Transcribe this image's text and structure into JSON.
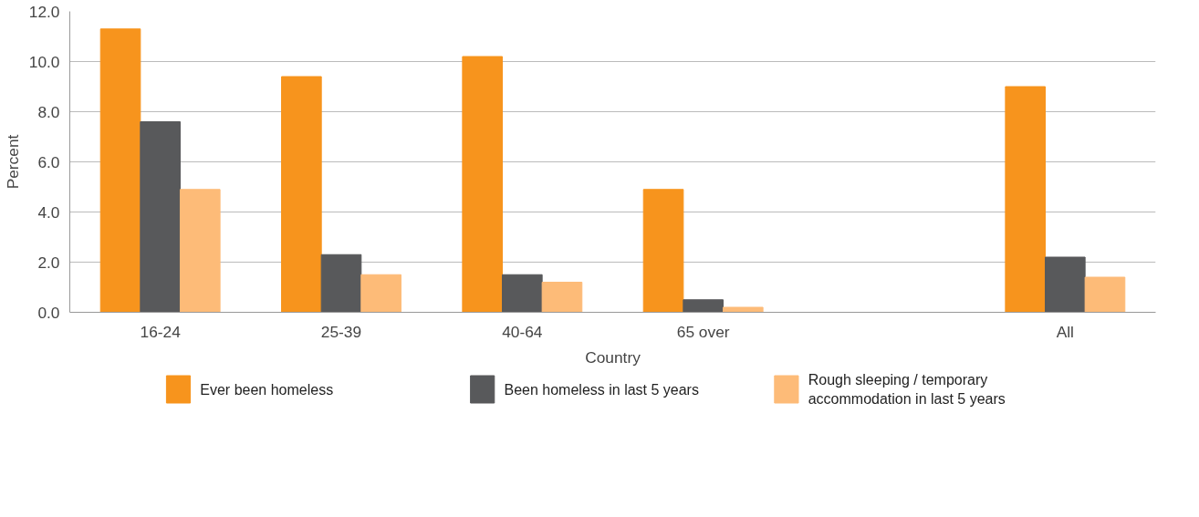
{
  "chart_data": {
    "type": "bar",
    "xlabel": "Country",
    "ylabel": "Percent",
    "categories": [
      "16-24",
      "25-39",
      "40-64",
      "65 over",
      null,
      "All"
    ],
    "series": [
      {
        "name": "Ever been homeless",
        "color": "#f7941d",
        "values": [
          11.3,
          9.4,
          10.2,
          4.9,
          null,
          9.0
        ]
      },
      {
        "name": "Been homeless in last 5 years",
        "color": "#58595b",
        "values": [
          7.6,
          2.3,
          1.5,
          0.5,
          null,
          2.2
        ]
      },
      {
        "name": "Rough sleeping / temporary accommodation in last 5 years",
        "color": "#fdbb78",
        "values": [
          4.9,
          1.5,
          1.2,
          0.2,
          null,
          1.4
        ]
      }
    ],
    "ylim": [
      0,
      12
    ],
    "yticks": [
      {
        "value": 0,
        "label": "0.0"
      },
      {
        "value": 2,
        "label": "2.0"
      },
      {
        "value": 4,
        "label": "4.0"
      },
      {
        "value": 6,
        "label": "6.0"
      },
      {
        "value": 8,
        "label": "8.0"
      },
      {
        "value": 10,
        "label": "10.0"
      },
      {
        "value": 12,
        "label": "12.0"
      }
    ],
    "grid": "y",
    "legend": "bottom"
  }
}
